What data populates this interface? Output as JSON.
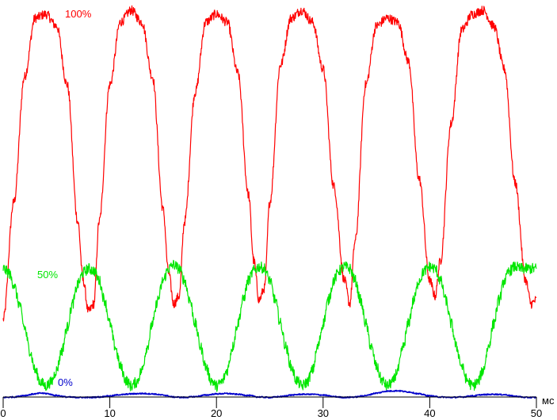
{
  "chart_data": {
    "type": "line",
    "x_unit": "мс",
    "xlim": [
      0,
      50
    ],
    "x_ticks": [
      "0",
      "10",
      "20",
      "30",
      "40",
      "50"
    ],
    "x_tick_values": [
      0,
      10,
      20,
      30,
      40,
      50
    ],
    "y_axis_shown": false,
    "ylim": [
      0,
      100
    ],
    "grid": false,
    "series": [
      {
        "name": "100%",
        "color": "#ff0000",
        "noise": 1.2,
        "x": [
          0,
          1,
          2,
          3,
          4,
          5,
          6,
          7,
          7.5,
          8,
          8.5,
          9,
          10,
          11,
          12,
          13,
          14,
          15,
          15.5,
          16,
          16.5,
          17,
          18,
          19,
          20,
          21,
          22,
          23,
          23.5,
          24,
          24.5,
          25,
          26,
          27,
          28,
          29,
          30,
          31,
          32,
          32.5,
          33,
          34,
          35,
          36,
          37,
          38,
          39,
          40,
          40.5,
          41,
          42,
          43,
          44,
          45,
          46,
          47,
          48,
          49,
          49.5,
          50
        ],
        "values": [
          20,
          50,
          82,
          97,
          98,
          95,
          80,
          45,
          30,
          22,
          24,
          45,
          80,
          96,
          99,
          96,
          82,
          48,
          32,
          24,
          26,
          45,
          78,
          96,
          98,
          96,
          83,
          52,
          35,
          25,
          28,
          50,
          85,
          97,
          99,
          96,
          84,
          54,
          30,
          24,
          40,
          80,
          95,
          97,
          96,
          86,
          56,
          30,
          26,
          35,
          70,
          94,
          98,
          99,
          95,
          84,
          55,
          30,
          24,
          25
        ]
      },
      {
        "name": "50%",
        "color": "#00e600",
        "noise": 1.4,
        "x": [
          0,
          0.5,
          1,
          1.5,
          2,
          2.5,
          3,
          3.5,
          4,
          4.5,
          5,
          5.5,
          6,
          6.5,
          7,
          7.5,
          8,
          8.5,
          9,
          9.5,
          10,
          10.5,
          11,
          11.5,
          12,
          12.5,
          13,
          13.5,
          14,
          14.5,
          15,
          15.5,
          16,
          16.5,
          17,
          17.5,
          18,
          18.5,
          19,
          19.5,
          20,
          20.5,
          21,
          21.5,
          22,
          22.5,
          23,
          23.5,
          24,
          24.5,
          25,
          25.5,
          26,
          26.5,
          27,
          27.5,
          28,
          28.5,
          29,
          29.5,
          30,
          30.5,
          31,
          31.5,
          32,
          32.5,
          33,
          33.5,
          34,
          34.5,
          35,
          35.5,
          36,
          36.5,
          37,
          37.5,
          38,
          38.5,
          39,
          39.5,
          40,
          40.5,
          41,
          41.5,
          42,
          42.5,
          43,
          43.5,
          44,
          44.5,
          45,
          45.5,
          46,
          46.5,
          47,
          47.5,
          48,
          48.5,
          49,
          49.5,
          50
        ],
        "values": [
          33,
          32,
          29,
          24,
          18,
          12,
          7,
          4,
          3,
          4,
          7,
          12,
          18,
          24,
          29,
          32,
          33,
          32.5,
          30,
          25,
          19,
          13,
          8,
          4.5,
          3,
          4,
          7,
          13,
          19,
          25,
          30,
          33,
          34,
          33,
          30,
          25,
          19,
          13,
          8,
          4.5,
          3,
          4,
          7,
          13,
          19,
          25,
          30,
          32.5,
          33.5,
          33,
          30,
          25,
          19,
          13,
          8,
          4.5,
          3,
          4,
          7,
          13,
          19,
          25,
          30,
          32.5,
          33.5,
          33,
          30,
          25,
          19,
          13,
          8,
          4.5,
          3,
          4,
          7,
          13,
          19,
          25,
          30,
          32.5,
          33.5,
          33,
          30,
          25,
          19,
          13,
          8,
          4.5,
          3,
          4,
          7,
          13,
          19,
          25,
          30,
          32.5,
          33.5,
          33,
          33,
          33,
          33
        ]
      },
      {
        "name": "0%",
        "color": "#0000cc",
        "noise": 0.15,
        "x": [
          0,
          1,
          2,
          3,
          3.5,
          4,
          5,
          6,
          7,
          8,
          9,
          10,
          11,
          12,
          13,
          14,
          15,
          16,
          17,
          18,
          19,
          20,
          21,
          22,
          23,
          24,
          25,
          26,
          27,
          28,
          29,
          30,
          31,
          32,
          33,
          34,
          35,
          36,
          37,
          38,
          39,
          40,
          41,
          42,
          43,
          44,
          45,
          46,
          47,
          48,
          49,
          50
        ],
        "values": [
          0.1,
          0.2,
          0.6,
          1.0,
          1.2,
          1.1,
          0.6,
          0.2,
          0.1,
          0.1,
          0.2,
          0.5,
          0.8,
          1.0,
          1.1,
          1.0,
          0.7,
          0.2,
          0.1,
          0.3,
          0.7,
          1.0,
          1.1,
          0.9,
          0.6,
          0.2,
          0.1,
          0.3,
          0.7,
          0.9,
          0.9,
          0.7,
          0.3,
          0.1,
          0.2,
          0.6,
          1.2,
          1.7,
          1.8,
          1.5,
          1.0,
          0.5,
          0.2,
          0.1,
          0.2,
          0.5,
          0.8,
          0.9,
          0.8,
          0.4,
          0.1,
          0.1
        ]
      }
    ]
  }
}
